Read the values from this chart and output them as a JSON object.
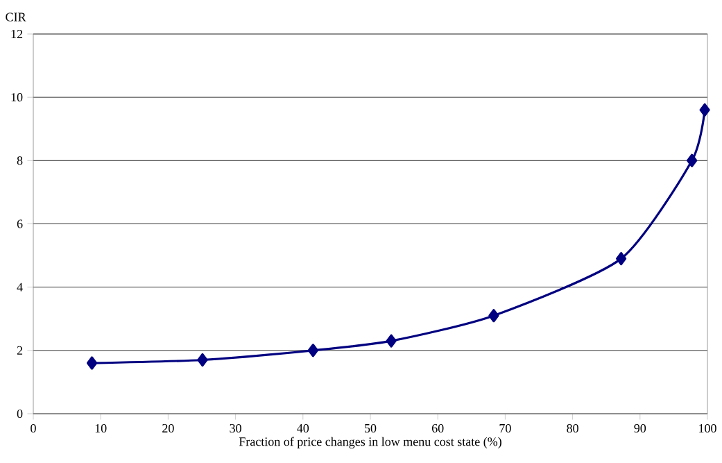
{
  "chart_data": {
    "type": "line",
    "xlabel": "Fraction of price changes in low menu cost state (%)",
    "ylabel": "CIR",
    "x": [
      8.7,
      25.1,
      41.5,
      53.1,
      68.3,
      87.2,
      97.7,
      99.6
    ],
    "series": [
      {
        "color": "#000080",
        "values": [
          1.6,
          1.7,
          2.0,
          2.3,
          3.1,
          4.9,
          8.0,
          9.6
        ]
      }
    ],
    "xlim": [
      0,
      100
    ],
    "ylim": [
      0,
      12
    ],
    "xticks": [
      0,
      10,
      20,
      30,
      40,
      50,
      60,
      70,
      80,
      90,
      100
    ],
    "yticks": [
      0,
      2,
      4,
      6,
      8,
      10,
      12
    ],
    "grid": "y",
    "marker": "diamond",
    "line_style": "solid"
  }
}
